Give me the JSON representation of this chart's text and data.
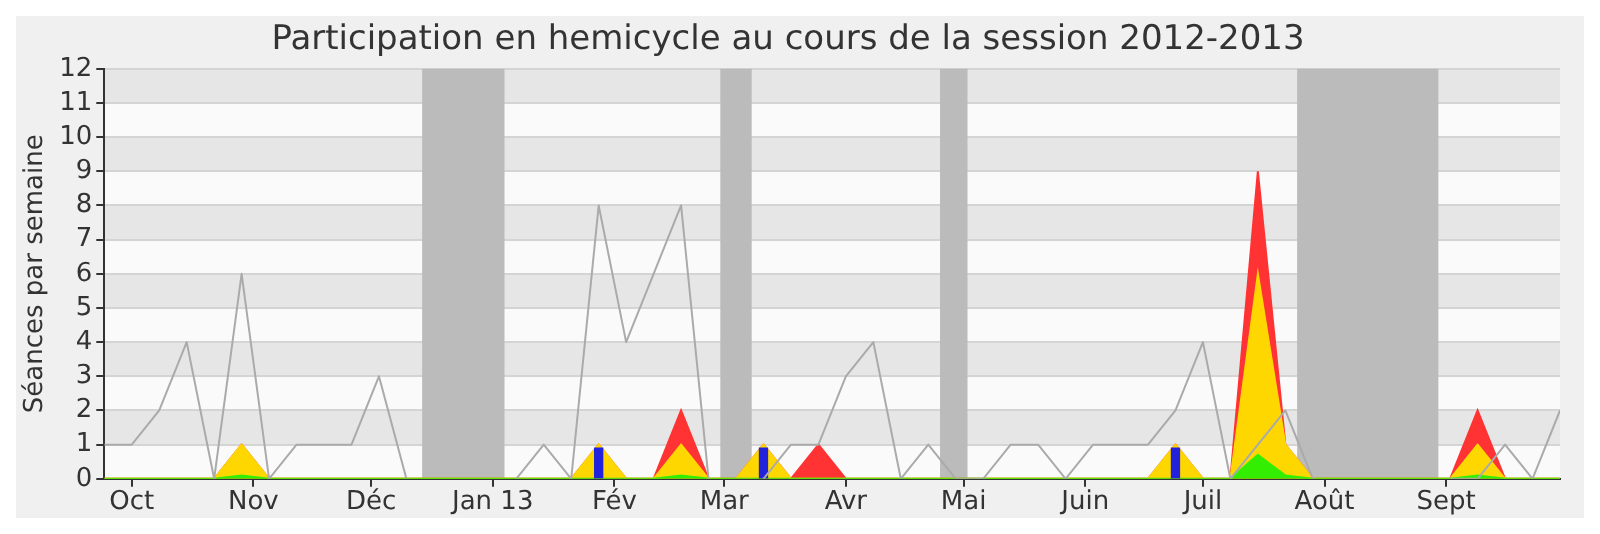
{
  "chart_data": {
    "type": "area",
    "title": "Participation en hemicycle au cours de la session 2012-2013",
    "ylabel": "Séances par semaine",
    "x": [
      "2012-09-24",
      "2012-10-01",
      "2012-10-08",
      "2012-10-15",
      "2012-10-22",
      "2012-10-29",
      "2012-11-05",
      "2012-11-12",
      "2012-11-19",
      "2012-11-26",
      "2012-12-03",
      "2012-12-10",
      "2012-12-17",
      "2012-12-24",
      "2012-12-31",
      "2013-01-07",
      "2013-01-14",
      "2013-01-21",
      "2013-01-28",
      "2013-02-04",
      "2013-02-11",
      "2013-02-18",
      "2013-02-25",
      "2013-03-04",
      "2013-03-11",
      "2013-03-18",
      "2013-03-25",
      "2013-04-01",
      "2013-04-08",
      "2013-04-15",
      "2013-04-22",
      "2013-04-29",
      "2013-05-06",
      "2013-05-13",
      "2013-05-20",
      "2013-05-27",
      "2013-06-03",
      "2013-06-10",
      "2013-06-17",
      "2013-06-24",
      "2013-07-01",
      "2013-07-08",
      "2013-07-15",
      "2013-07-22",
      "2013-07-29",
      "2013-08-05",
      "2013-08-12",
      "2013-08-19",
      "2013-08-26",
      "2013-09-02",
      "2013-09-09",
      "2013-09-16",
      "2013-09-23",
      "2013-09-30"
    ],
    "xlim": [
      "2012-09-24",
      "2013-09-30"
    ],
    "xticks": [
      {
        "value": "2012-10-01",
        "label": "Oct"
      },
      {
        "value": "2012-11-01",
        "label": "Nov"
      },
      {
        "value": "2012-12-01",
        "label": "Déc"
      },
      {
        "value": "2013-01-01",
        "label": "Jan 13"
      },
      {
        "value": "2013-02-01",
        "label": "Fév"
      },
      {
        "value": "2013-03-01",
        "label": "Mar"
      },
      {
        "value": "2013-04-01",
        "label": "Avr"
      },
      {
        "value": "2013-05-01",
        "label": "Mai"
      },
      {
        "value": "2013-06-01",
        "label": "Juin"
      },
      {
        "value": "2013-07-01",
        "label": "Juil"
      },
      {
        "value": "2013-08-01",
        "label": "Août"
      },
      {
        "value": "2013-09-01",
        "label": "Sept"
      }
    ],
    "ylim": [
      0,
      12
    ],
    "yticks": [
      0,
      1,
      2,
      3,
      4,
      5,
      6,
      7,
      8,
      9,
      10,
      11,
      12
    ],
    "grid": "y",
    "series": [
      {
        "color": "#ff3333",
        "values": [
          0,
          0,
          0,
          0,
          0,
          1,
          0,
          0,
          0,
          0,
          0,
          0,
          0,
          0,
          0,
          0,
          0,
          0,
          1,
          0,
          0,
          2,
          0,
          0,
          1,
          0,
          1,
          0,
          0,
          0,
          0,
          0,
          0,
          0,
          0,
          0,
          0,
          0,
          0,
          1,
          0,
          0,
          9,
          1,
          0,
          0,
          0,
          0,
          0,
          0,
          2,
          0,
          0,
          0
        ]
      },
      {
        "color": "#ffd700",
        "values": [
          0,
          0,
          0,
          0,
          0,
          1,
          0,
          0,
          0,
          0,
          0,
          0,
          0,
          0,
          0,
          0,
          0,
          0,
          1,
          0,
          0,
          1,
          0,
          0,
          1,
          0,
          0,
          0,
          0,
          0,
          0,
          0,
          0,
          0,
          0,
          0,
          0,
          0,
          0,
          1,
          0,
          0,
          6,
          1,
          0,
          0,
          0,
          0,
          0,
          0,
          1,
          0,
          0,
          0
        ]
      },
      {
        "color": "#33ee00",
        "values": [
          0,
          0,
          0,
          0,
          0,
          0.1,
          0,
          0,
          0,
          0,
          0,
          0,
          0,
          0,
          0,
          0,
          0,
          0,
          0,
          0,
          0,
          0.1,
          0,
          0,
          0,
          0,
          0,
          0,
          0,
          0,
          0,
          0,
          0,
          0,
          0,
          0,
          0,
          0,
          0,
          0,
          0,
          0,
          0.7,
          0.1,
          0,
          0,
          0,
          0,
          0,
          0,
          0.1,
          0,
          0,
          0
        ]
      },
      {
        "type": "bar",
        "color": "#2222dd",
        "values": [
          null,
          null,
          null,
          null,
          null,
          null,
          null,
          null,
          null,
          null,
          null,
          null,
          null,
          null,
          null,
          null,
          null,
          null,
          0.9,
          null,
          null,
          null,
          null,
          null,
          0.9,
          null,
          null,
          null,
          null,
          null,
          null,
          null,
          null,
          null,
          null,
          null,
          null,
          null,
          null,
          0.9,
          null,
          null,
          null,
          null,
          null,
          null,
          null,
          null,
          null,
          null,
          null,
          null,
          null,
          null
        ]
      },
      {
        "type": "line",
        "color": "#aaaaaa",
        "values": [
          1,
          1,
          2,
          4,
          0,
          6,
          0,
          1,
          1,
          1,
          3,
          0,
          null,
          null,
          null,
          0,
          1,
          0,
          8,
          4,
          6,
          8,
          0,
          null,
          0,
          1,
          1,
          3,
          4,
          0,
          1,
          0,
          0,
          1,
          1,
          0,
          1,
          1,
          1,
          2,
          4,
          0,
          1,
          2,
          0,
          null,
          null,
          null,
          null,
          0,
          0,
          1,
          0,
          2
        ]
      }
    ],
    "bands": [
      {
        "axis": "x",
        "from": "2012-12-14",
        "to": "2013-01-04",
        "color": "#bbbbbb"
      },
      {
        "axis": "x",
        "from": "2013-02-28",
        "to": "2013-03-08",
        "color": "#bbbbbb"
      },
      {
        "axis": "x",
        "from": "2013-04-25",
        "to": "2013-05-02",
        "color": "#bbbbbb"
      },
      {
        "axis": "x",
        "from": "2013-07-25",
        "to": "2013-08-30",
        "color": "#bbbbbb"
      }
    ]
  }
}
